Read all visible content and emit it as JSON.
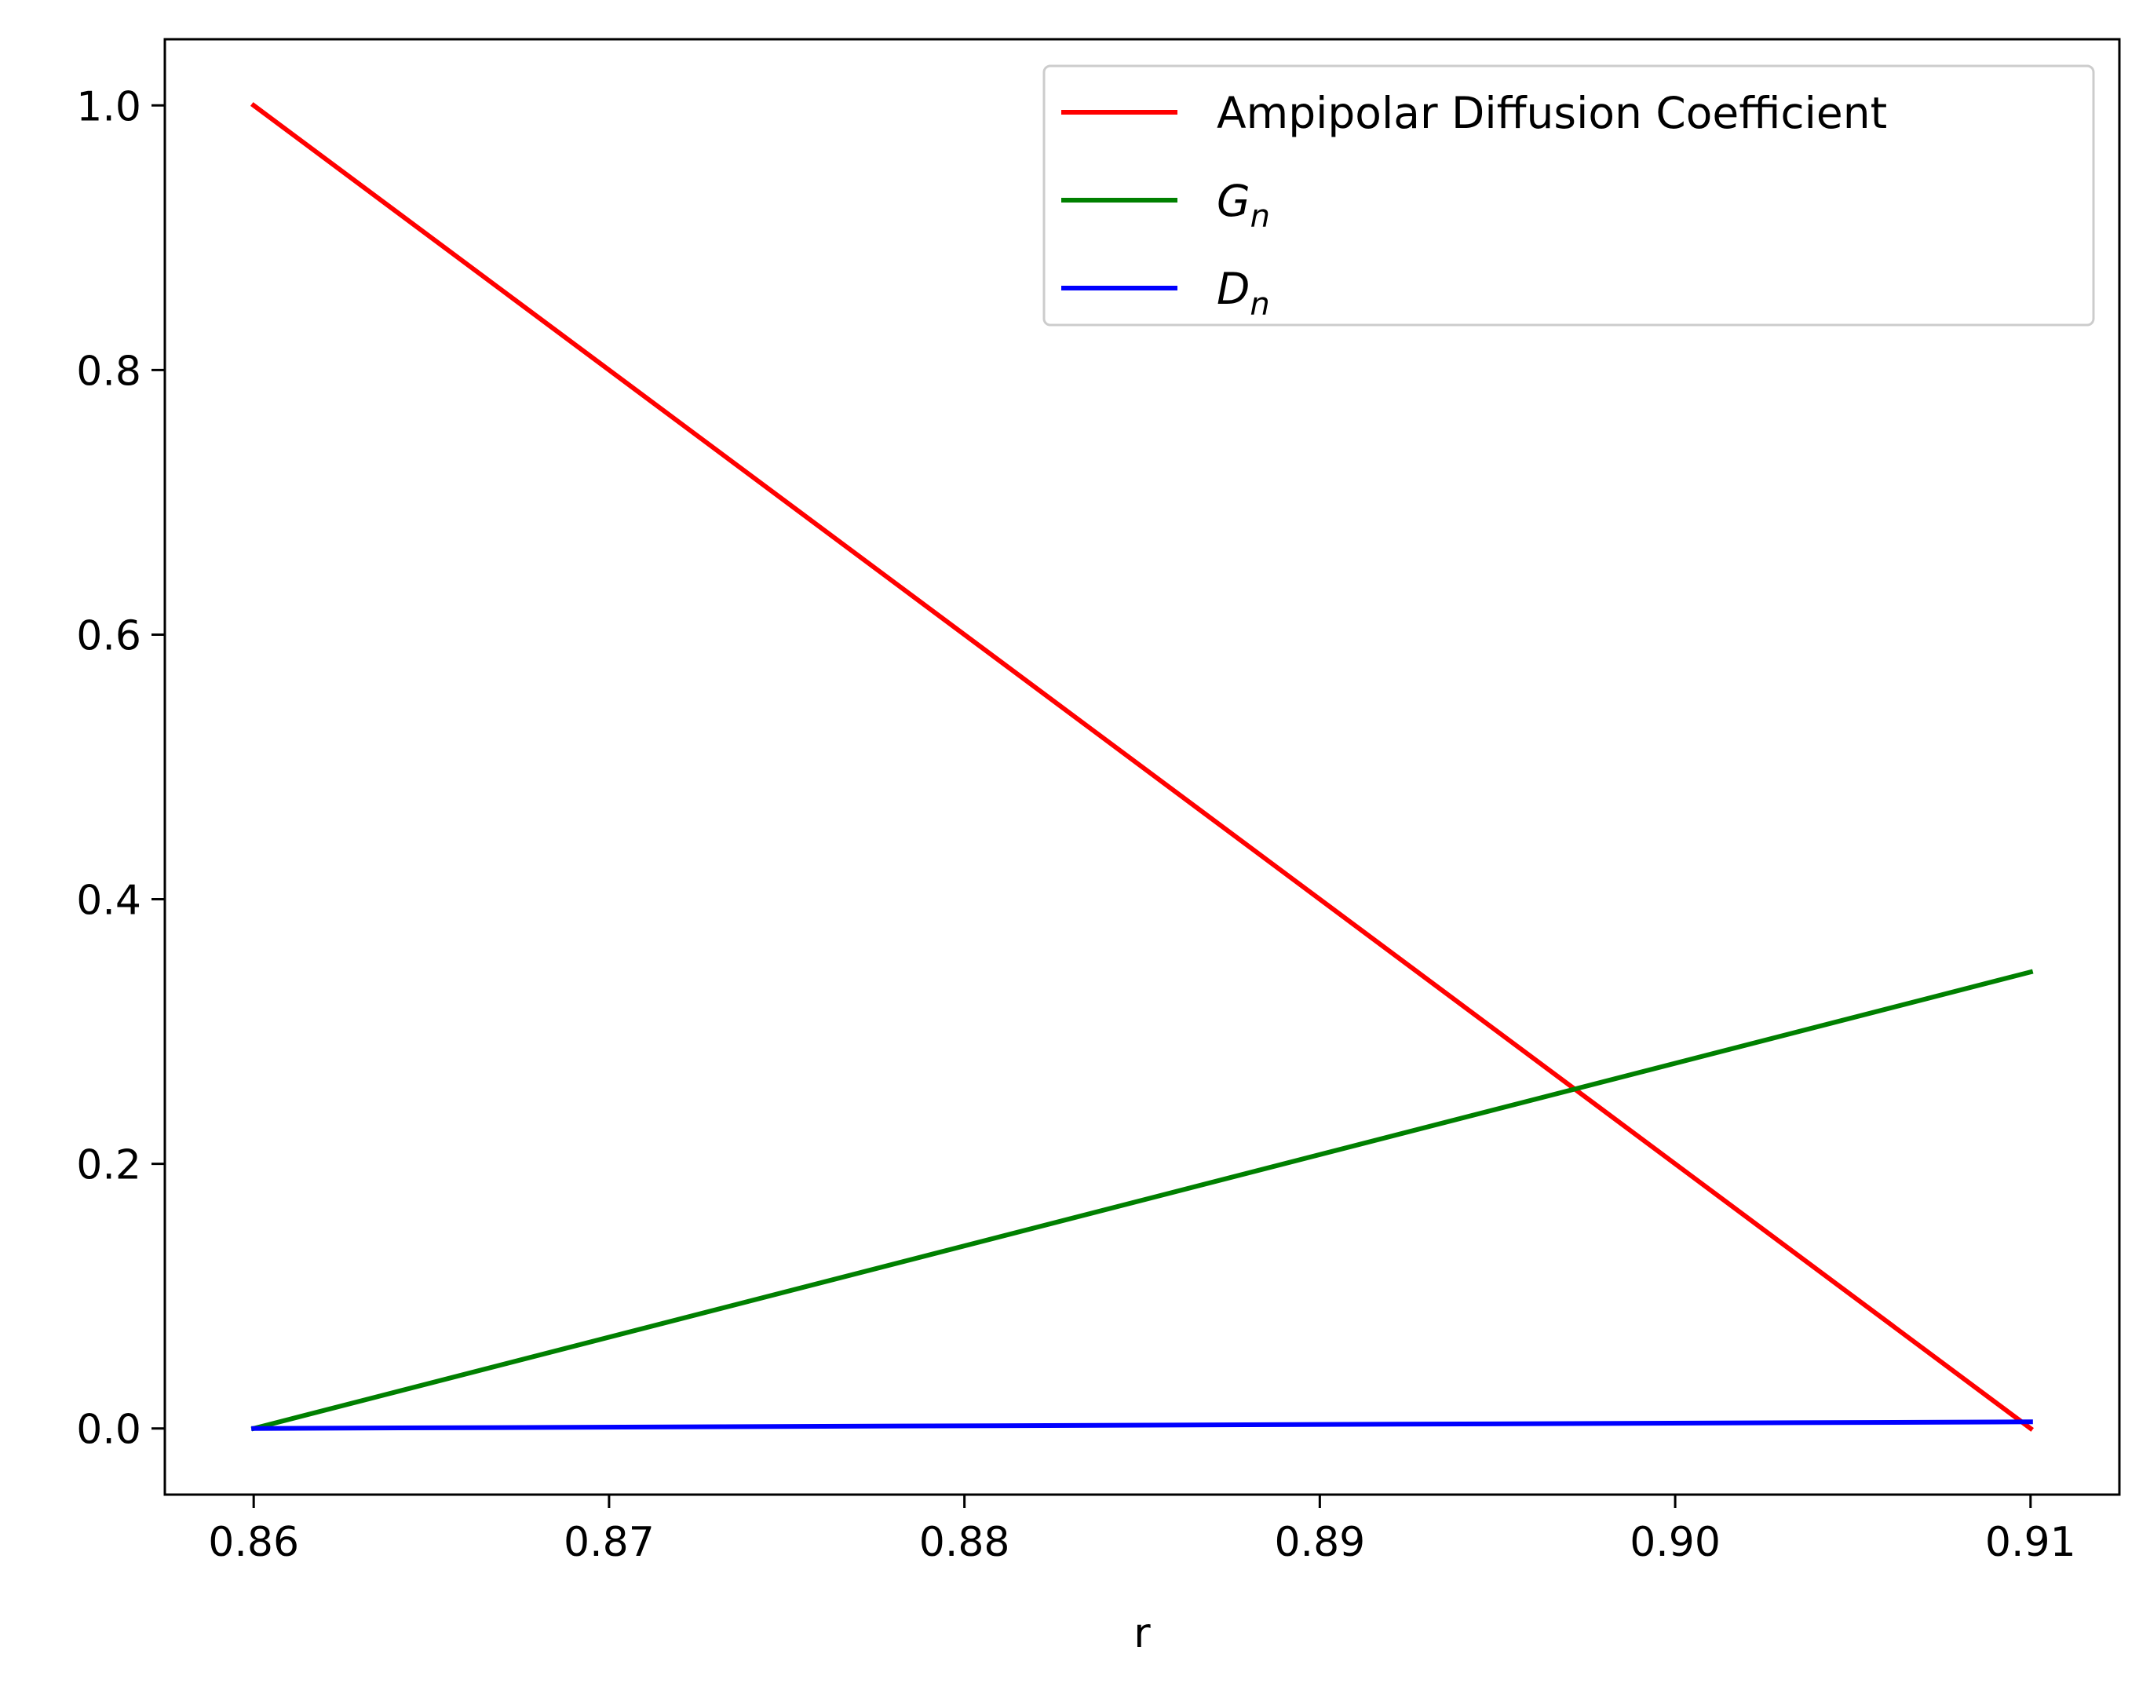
{
  "chart_data": {
    "type": "line",
    "title": "",
    "xlabel": "r",
    "ylabel": "",
    "xlim": [
      0.8575,
      0.9125
    ],
    "ylim": [
      -0.05,
      1.05
    ],
    "x_ticks": [
      0.86,
      0.87,
      0.88,
      0.89,
      0.9,
      0.91
    ],
    "x_tick_labels": [
      "0.86",
      "0.87",
      "0.88",
      "0.89",
      "0.90",
      "0.91"
    ],
    "y_ticks": [
      0.0,
      0.2,
      0.4,
      0.6,
      0.8,
      1.0
    ],
    "y_tick_labels": [
      "0.0",
      "0.2",
      "0.4",
      "0.6",
      "0.8",
      "1.0"
    ],
    "grid": false,
    "legend_position": "top-right",
    "series": [
      {
        "name": "Ampipolar Diffusion Coefficient",
        "name_main": "Ampipolar Diffusion Coefficient",
        "name_sub": "",
        "color": "#ff0000",
        "x": [
          0.86,
          0.91
        ],
        "y": [
          1.0,
          0.0
        ]
      },
      {
        "name": "G_n",
        "name_main": "G",
        "name_sub": "n",
        "color": "#008000",
        "x": [
          0.86,
          0.91
        ],
        "y": [
          0.0,
          0.345
        ]
      },
      {
        "name": "D_n",
        "name_main": "D",
        "name_sub": "n",
        "color": "#0000ff",
        "x": [
          0.86,
          0.91
        ],
        "y": [
          0.0,
          0.005
        ]
      }
    ]
  }
}
